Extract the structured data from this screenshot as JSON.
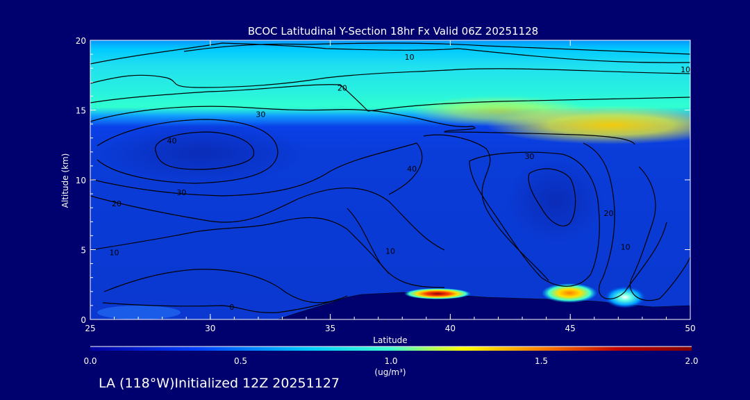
{
  "chart_data": {
    "type": "heatmap",
    "title": "BCOC Latitudinal Y-Section 18hr  Fx Valid 06Z 20251128",
    "xlabel": "Latitude",
    "ylabel": "Altitude (km)",
    "xlim": [
      25,
      50
    ],
    "ylim": [
      0,
      20
    ],
    "x_ticks": [
      "25",
      "30",
      "35",
      "40",
      "45",
      "50"
    ],
    "y_ticks": [
      "0",
      "5",
      "10",
      "15",
      "20"
    ],
    "colorbar": {
      "label": "(ug/m³)",
      "ticks": [
        "0.0",
        "0.5",
        "1.0",
        "1.5",
        "2.0"
      ],
      "range": [
        0,
        2.0
      ],
      "colors": [
        "#0000a0",
        "#0040ff",
        "#00c8ff",
        "#40ffd0",
        "#ffff00",
        "#ff8000",
        "#c00000",
        "#800000"
      ]
    },
    "concentration_bands": [
      {
        "alt_from": 0,
        "alt_to": 1.5,
        "value": 0.35
      },
      {
        "alt_from": 1.5,
        "alt_to": 12,
        "value": 0.3
      },
      {
        "alt_from": 12,
        "alt_to": 14,
        "value": 0.55
      },
      {
        "alt_from": 14,
        "alt_to": 17,
        "value": 1.05
      },
      {
        "alt_from": 17,
        "alt_to": 19.5,
        "value": 0.95
      },
      {
        "alt_from": 19.5,
        "alt_to": 20,
        "value": 0.85
      }
    ],
    "surface_hotspots": [
      {
        "lat": 39.0,
        "alt": 1.7,
        "value": 1.9
      },
      {
        "lat": 44.8,
        "alt": 1.7,
        "value": 1.5
      },
      {
        "lat": 47.5,
        "alt": 1.2,
        "value": 0.9
      }
    ],
    "contour_labels": [
      {
        "text": "10",
        "lat": 38.3,
        "alt": 18.8
      },
      {
        "text": "10",
        "lat": 49.8,
        "alt": 17.9
      },
      {
        "text": "20",
        "lat": 35.5,
        "alt": 16.6
      },
      {
        "text": "30",
        "lat": 32.1,
        "alt": 14.7
      },
      {
        "text": "40",
        "lat": 28.4,
        "alt": 12.8
      },
      {
        "text": "30",
        "lat": 43.3,
        "alt": 11.7
      },
      {
        "text": "40",
        "lat": 38.4,
        "alt": 10.8
      },
      {
        "text": "30",
        "lat": 28.8,
        "alt": 9.1
      },
      {
        "text": "20",
        "lat": 26.1,
        "alt": 8.3
      },
      {
        "text": "10",
        "lat": 26.0,
        "alt": 4.8
      },
      {
        "text": "10",
        "lat": 37.5,
        "alt": 4.9
      },
      {
        "text": "20",
        "lat": 46.6,
        "alt": 7.6
      },
      {
        "text": "10",
        "lat": 47.3,
        "alt": 5.2
      },
      {
        "text": "0",
        "lat": 30.9,
        "alt": 0.9
      }
    ]
  },
  "footer": {
    "text": "LA (118°W)Initialized 12Z 20251127"
  }
}
